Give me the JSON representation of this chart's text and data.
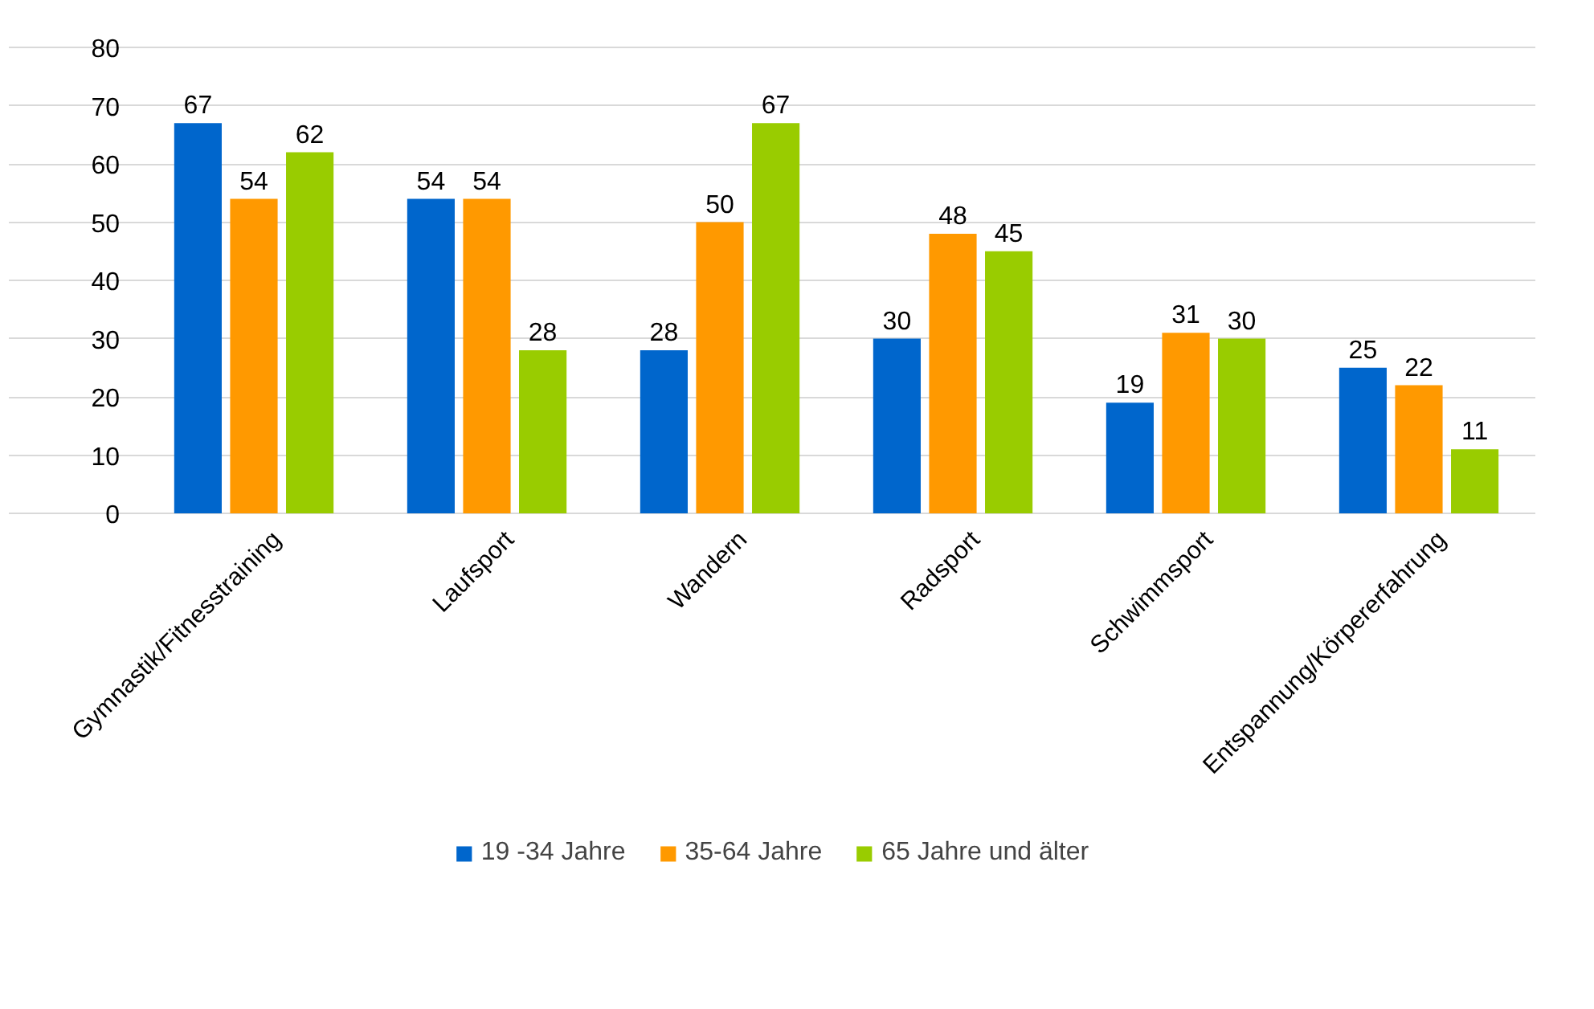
{
  "chart_data": {
    "type": "bar",
    "categories": [
      "Gymnastik/Fitnesstraining",
      "Laufsport",
      "Wandern",
      "Radsport",
      "Schwimmsport",
      "Entspannung/Körpererfahrung"
    ],
    "series": [
      {
        "name": "19 -34 Jahre",
        "color": "#0066cc",
        "values": [
          67,
          54,
          28,
          30,
          19,
          25
        ]
      },
      {
        "name": "35-64 Jahre",
        "color": "#ff9900",
        "values": [
          54,
          54,
          50,
          48,
          31,
          22
        ]
      },
      {
        "name": "65 Jahre und älter",
        "color": "#99cc00",
        "values": [
          62,
          28,
          67,
          45,
          30,
          11
        ]
      }
    ],
    "ylim": [
      0,
      80
    ],
    "yticks": [
      0,
      10,
      20,
      30,
      40,
      50,
      60,
      70,
      80
    ],
    "grid": "y",
    "legend": "bottom",
    "data_labels": true
  }
}
